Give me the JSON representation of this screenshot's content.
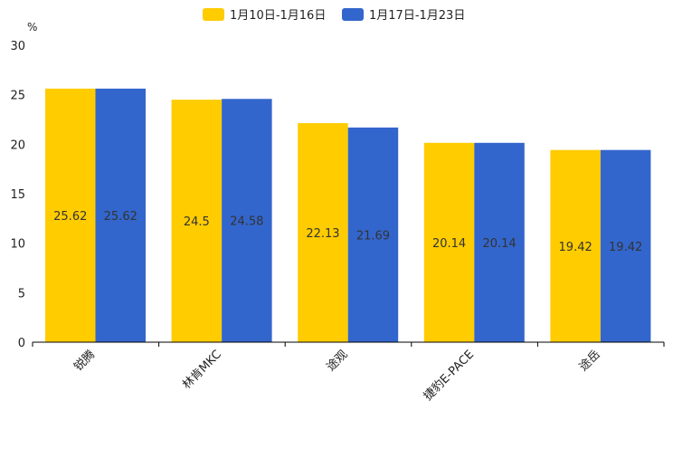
{
  "chart_data": {
    "type": "bar",
    "title": "",
    "ylabel": "%",
    "xlabel": "",
    "ylim": [
      0,
      30
    ],
    "yticks": [
      0,
      5,
      10,
      15,
      20,
      25,
      30
    ],
    "categories": [
      "锐腾",
      "林肯MKC",
      "途观",
      "捷豹E-PACE",
      "途岳"
    ],
    "series": [
      {
        "name": "1月10日-1月16日",
        "color": "#FFCC00",
        "values": [
          25.62,
          24.5,
          22.13,
          20.14,
          19.42
        ]
      },
      {
        "name": "1月17日-1月23日",
        "color": "#3366CC",
        "values": [
          25.62,
          24.58,
          21.69,
          20.14,
          19.42
        ]
      }
    ],
    "legend_position": "top-center",
    "data_labels": true
  }
}
